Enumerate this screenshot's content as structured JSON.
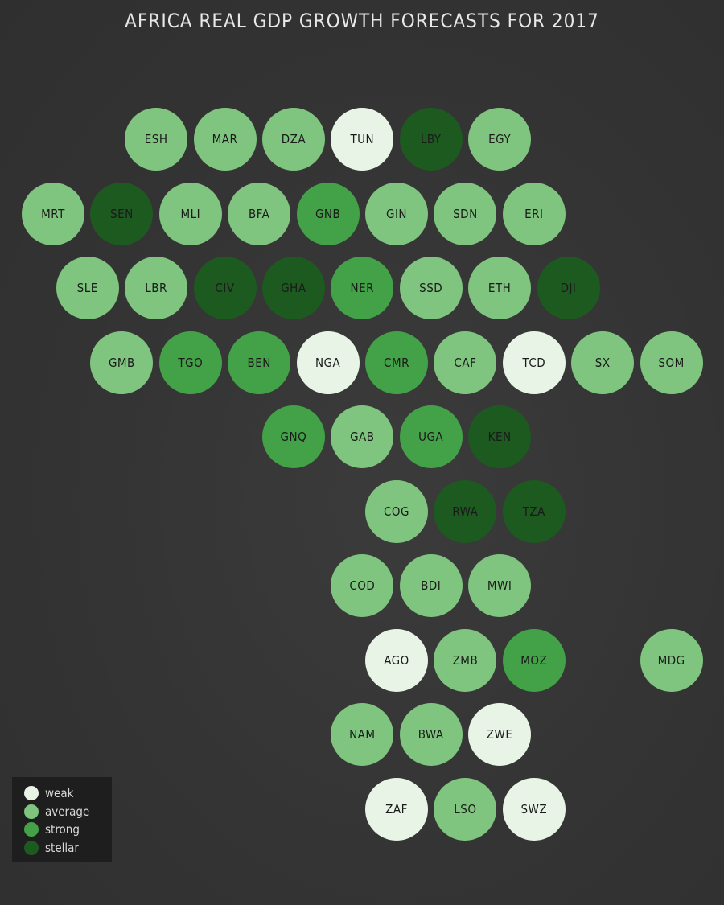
{
  "title": "AFRICA REAL GDP GROWTH FORECASTS FOR 2017",
  "colors": {
    "weak": "#e8f5e6",
    "average": "#7fc57f",
    "strong": "#43a147",
    "stellar": "#1d5a20"
  },
  "legend": [
    {
      "key": "weak",
      "label": "weak"
    },
    {
      "key": "average",
      "label": "average"
    },
    {
      "key": "strong",
      "label": "strong"
    },
    {
      "key": "stellar",
      "label": "stellar"
    }
  ],
  "tiles": [
    {
      "code": "ESH",
      "row": 0,
      "col": 3,
      "cat": "average"
    },
    {
      "code": "MAR",
      "row": 0,
      "col": 5,
      "cat": "average"
    },
    {
      "code": "DZA",
      "row": 0,
      "col": 7,
      "cat": "average"
    },
    {
      "code": "TUN",
      "row": 0,
      "col": 9,
      "cat": "weak"
    },
    {
      "code": "LBY",
      "row": 0,
      "col": 11,
      "cat": "stellar"
    },
    {
      "code": "EGY",
      "row": 0,
      "col": 13,
      "cat": "average"
    },
    {
      "code": "MRT",
      "row": 1,
      "col": 0,
      "cat": "average"
    },
    {
      "code": "SEN",
      "row": 1,
      "col": 2,
      "cat": "stellar"
    },
    {
      "code": "MLI",
      "row": 1,
      "col": 4,
      "cat": "average"
    },
    {
      "code": "BFA",
      "row": 1,
      "col": 6,
      "cat": "average"
    },
    {
      "code": "GNB",
      "row": 1,
      "col": 8,
      "cat": "strong"
    },
    {
      "code": "GIN",
      "row": 1,
      "col": 10,
      "cat": "average"
    },
    {
      "code": "SDN",
      "row": 1,
      "col": 12,
      "cat": "average"
    },
    {
      "code": "ERI",
      "row": 1,
      "col": 14,
      "cat": "average"
    },
    {
      "code": "SLE",
      "row": 2,
      "col": 1,
      "cat": "average"
    },
    {
      "code": "LBR",
      "row": 2,
      "col": 3,
      "cat": "average"
    },
    {
      "code": "CIV",
      "row": 2,
      "col": 5,
      "cat": "stellar"
    },
    {
      "code": "GHA",
      "row": 2,
      "col": 7,
      "cat": "stellar"
    },
    {
      "code": "NER",
      "row": 2,
      "col": 9,
      "cat": "strong"
    },
    {
      "code": "SSD",
      "row": 2,
      "col": 11,
      "cat": "average"
    },
    {
      "code": "ETH",
      "row": 2,
      "col": 13,
      "cat": "average"
    },
    {
      "code": "DJI",
      "row": 2,
      "col": 15,
      "cat": "stellar"
    },
    {
      "code": "GMB",
      "row": 3,
      "col": 2,
      "cat": "average"
    },
    {
      "code": "TGO",
      "row": 3,
      "col": 4,
      "cat": "strong"
    },
    {
      "code": "BEN",
      "row": 3,
      "col": 6,
      "cat": "strong"
    },
    {
      "code": "NGA",
      "row": 3,
      "col": 8,
      "cat": "weak"
    },
    {
      "code": "CMR",
      "row": 3,
      "col": 10,
      "cat": "strong"
    },
    {
      "code": "CAF",
      "row": 3,
      "col": 12,
      "cat": "average"
    },
    {
      "code": "TCD",
      "row": 3,
      "col": 14,
      "cat": "weak"
    },
    {
      "code": "SX",
      "row": 3,
      "col": 16,
      "cat": "average"
    },
    {
      "code": "SOM",
      "row": 3,
      "col": 18,
      "cat": "average"
    },
    {
      "code": "GNQ",
      "row": 4,
      "col": 7,
      "cat": "strong"
    },
    {
      "code": "GAB",
      "row": 4,
      "col": 9,
      "cat": "average"
    },
    {
      "code": "UGA",
      "row": 4,
      "col": 11,
      "cat": "strong"
    },
    {
      "code": "KEN",
      "row": 4,
      "col": 13,
      "cat": "stellar"
    },
    {
      "code": "COG",
      "row": 5,
      "col": 10,
      "cat": "average"
    },
    {
      "code": "RWA",
      "row": 5,
      "col": 12,
      "cat": "stellar"
    },
    {
      "code": "TZA",
      "row": 5,
      "col": 14,
      "cat": "stellar"
    },
    {
      "code": "COD",
      "row": 6,
      "col": 9,
      "cat": "average"
    },
    {
      "code": "BDI",
      "row": 6,
      "col": 11,
      "cat": "average"
    },
    {
      "code": "MWI",
      "row": 6,
      "col": 13,
      "cat": "average"
    },
    {
      "code": "AGO",
      "row": 7,
      "col": 10,
      "cat": "weak"
    },
    {
      "code": "ZMB",
      "row": 7,
      "col": 12,
      "cat": "average"
    },
    {
      "code": "MOZ",
      "row": 7,
      "col": 14,
      "cat": "strong"
    },
    {
      "code": "MDG",
      "row": 7,
      "col": 18,
      "cat": "average"
    },
    {
      "code": "NAM",
      "row": 8,
      "col": 9,
      "cat": "average"
    },
    {
      "code": "BWA",
      "row": 8,
      "col": 11,
      "cat": "average"
    },
    {
      "code": "ZWE",
      "row": 8,
      "col": 13,
      "cat": "weak"
    },
    {
      "code": "ZAF",
      "row": 9,
      "col": 10,
      "cat": "weak"
    },
    {
      "code": "LSO",
      "row": 9,
      "col": 12,
      "cat": "average"
    },
    {
      "code": "SWZ",
      "row": 9,
      "col": 14,
      "cat": "weak"
    }
  ]
}
